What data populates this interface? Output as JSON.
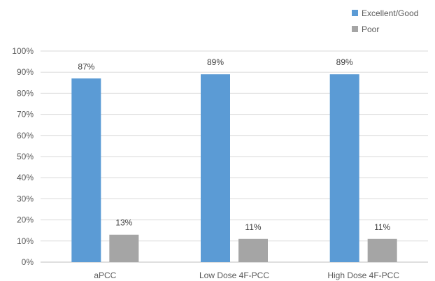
{
  "chart_data": {
    "type": "bar",
    "categories": [
      "aPCC",
      "Low Dose 4F-PCC",
      "High Dose 4F-PCC"
    ],
    "series": [
      {
        "name": "Excellent/Good",
        "values": [
          87,
          89,
          89
        ],
        "labels": [
          "87%",
          "89%",
          "89%"
        ],
        "color": "#5b9bd5"
      },
      {
        "name": "Poor",
        "values": [
          13,
          11,
          11
        ],
        "labels": [
          "13%",
          "11%",
          "11%"
        ],
        "color": "#a5a5a5"
      }
    ],
    "ylim": [
      0,
      100
    ],
    "yticks": [
      "0%",
      "10%",
      "20%",
      "30%",
      "40%",
      "50%",
      "60%",
      "70%",
      "80%",
      "90%",
      "100%"
    ],
    "grid": true,
    "legend_position": "top-right"
  }
}
